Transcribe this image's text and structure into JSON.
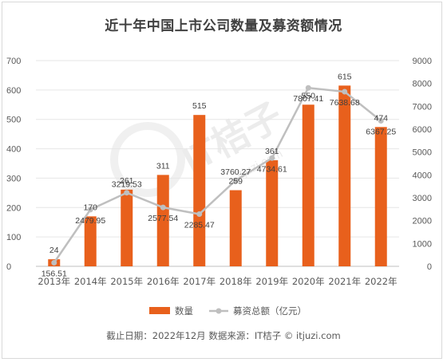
{
  "title": "近十年中国上市公司数量及募资额情况",
  "source": "截止日期：2022年12月    数据来源：IT桔子 © itjuzi.com",
  "watermark": {
    "logo_text": "IT桔子",
    "url_text": "itjuzi.com"
  },
  "colors": {
    "bar": "#e8601c",
    "line": "#bfbfbf",
    "grid": "#e6e6e6",
    "text": "#595959"
  },
  "chart_data": {
    "type": "bar",
    "title": "近十年中国上市公司数量及募资额情况",
    "categories": [
      "2013年",
      "2014年",
      "2015年",
      "2016年",
      "2017年",
      "2018年",
      "2019年",
      "2020年",
      "2021年",
      "2022年"
    ],
    "series": [
      {
        "name": "数量",
        "type": "bar",
        "axis": "left",
        "values": [
          24,
          170,
          261,
          311,
          515,
          259,
          361,
          550,
          615,
          474
        ],
        "labels": [
          "24",
          "170",
          "261",
          "311",
          "515",
          "259",
          "361",
          "550",
          "615",
          "474"
        ]
      },
      {
        "name": "募资总额（亿元）",
        "type": "line",
        "axis": "right",
        "values": [
          156.51,
          2479.95,
          3219.53,
          2577.54,
          2285.47,
          3760.27,
          4734.61,
          7807.41,
          7638.68,
          6367.25
        ],
        "labels": [
          "156.51",
          "2479.95",
          "3219.53",
          "2577.54",
          "2285.47",
          "3760.27",
          "4734.61",
          "7807.41",
          "7638.68",
          "6367.25"
        ]
      }
    ],
    "ylim": [
      0,
      700
    ],
    "y_ticks": [
      "0",
      "100",
      "200",
      "300",
      "400",
      "500",
      "600",
      "700"
    ],
    "y2lim": [
      0,
      9000
    ],
    "y2_ticks": [
      "0",
      "1000",
      "2000",
      "3000",
      "4000",
      "5000",
      "6000",
      "7000",
      "8000",
      "9000"
    ],
    "grid": true,
    "legend": "bottom-center"
  }
}
